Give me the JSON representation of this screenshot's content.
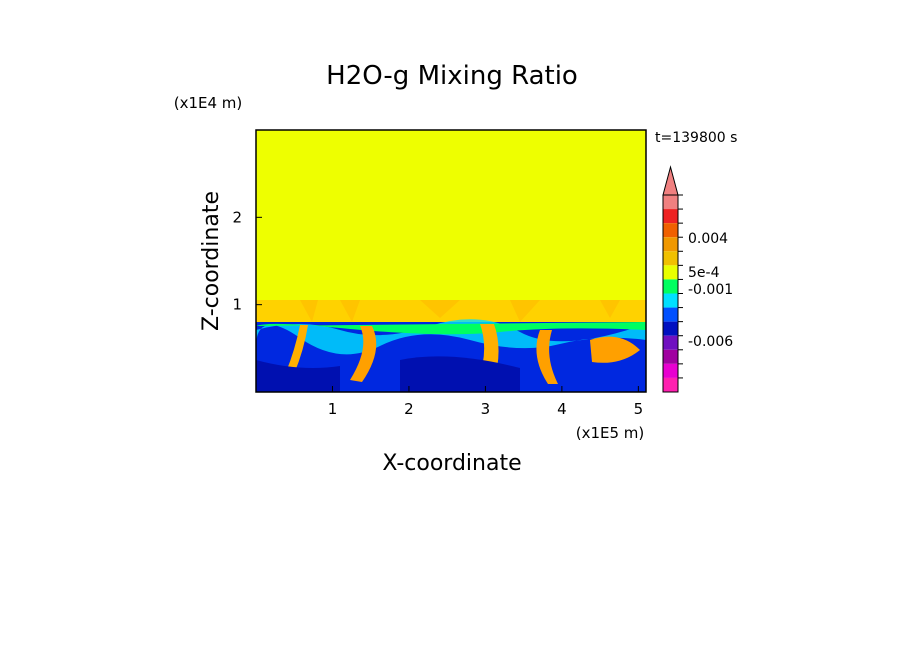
{
  "chart_data": {
    "type": "heatmap",
    "title": "H2O-g Mixing Ratio",
    "xlabel": "X-coordinate",
    "ylabel": "Z-coordinate",
    "x_scale_label": "(x1E5 m)",
    "y_scale_label": "(x1E4 m)",
    "time_label": "t=139800 s",
    "xlim": [
      0,
      5.1
    ],
    "ylim": [
      0,
      3.0
    ],
    "x_ticks": [
      "1",
      "2",
      "3",
      "4",
      "5"
    ],
    "y_ticks": [
      "1",
      "2"
    ],
    "colorbar_labels": [
      "0.004",
      "5e-4",
      "-0.001",
      "-0.006"
    ],
    "colorbar_colors": [
      "#f08080",
      "#ee2222",
      "#f06000",
      "#f09800",
      "#f0c000",
      "#e8ff00",
      "#00ff60",
      "#00e0ff",
      "#0050ff",
      "#0010c0",
      "#7010c0",
      "#a000a0",
      "#e800d0",
      "#ff20b0"
    ],
    "fields": {
      "upper_layer": {
        "color": "#eeff00",
        "z_range": [
          1.05,
          3.0
        ]
      },
      "transition_layer": {
        "color": "#ffd200",
        "z_range": [
          0.82,
          1.05
        ]
      },
      "lower_layer": {
        "color": "#0028e0",
        "z_range": [
          0,
          0.82
        ]
      }
    },
    "grid": false,
    "legend": "right"
  }
}
